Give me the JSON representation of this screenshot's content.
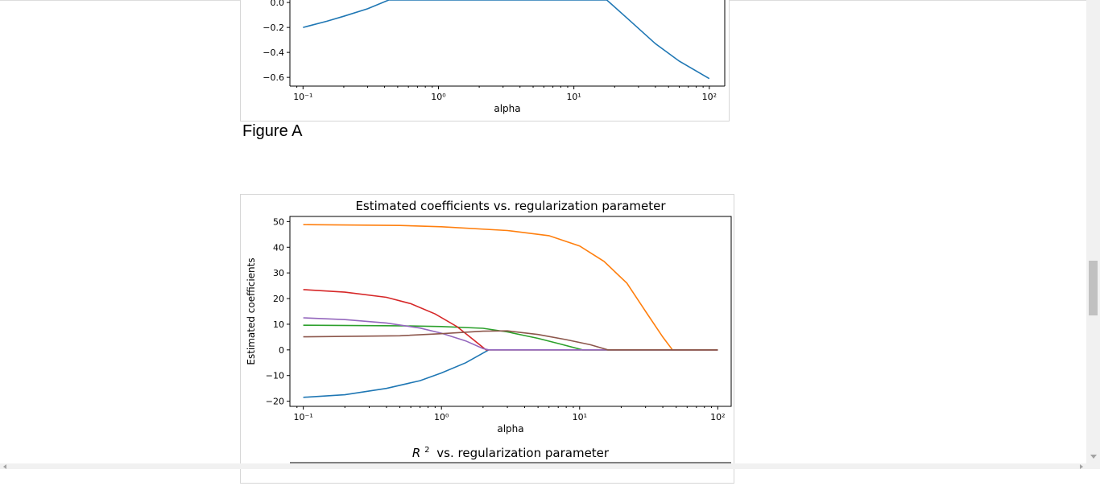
{
  "figure_a": {
    "caption": "Figure A",
    "chart_data": {
      "type": "line",
      "xlabel": "alpha",
      "xscale": "log",
      "xlim": [
        0.08,
        130
      ],
      "ylim": [
        -0.67,
        0.02
      ],
      "y_ticks": [
        0.0,
        -0.2,
        -0.4,
        -0.6
      ],
      "y_tick_labels": [
        "0.0",
        "−0.2",
        "−0.4",
        "−0.6"
      ],
      "x_ticks": [
        0.1,
        1,
        10,
        100
      ],
      "series": [
        {
          "color": "#1f77b4",
          "points": [
            [
              0.1,
              -0.2
            ],
            [
              0.15,
              -0.15
            ],
            [
              0.2,
              -0.11
            ],
            [
              0.3,
              -0.05
            ],
            [
              0.43,
              0.02
            ],
            [
              17.5,
              0.02
            ],
            [
              25,
              -0.13
            ],
            [
              40,
              -0.33
            ],
            [
              60,
              -0.47
            ],
            [
              100,
              -0.61
            ]
          ]
        }
      ]
    }
  },
  "figure_b": {
    "chart_data": {
      "type": "line",
      "title": "Estimated coefficients vs. regularization parameter",
      "xlabel": "alpha",
      "ylabel": "Estimated coefficients",
      "xscale": "log",
      "xlim": [
        0.08,
        125
      ],
      "ylim": [
        -22,
        52
      ],
      "y_ticks": [
        50,
        40,
        30,
        20,
        10,
        0,
        -10,
        -20
      ],
      "y_tick_labels": [
        "50",
        "40",
        "30",
        "20",
        "10",
        "0",
        "−10",
        "−20"
      ],
      "x_ticks": [
        0.1,
        1,
        10,
        100
      ],
      "series": [
        {
          "color": "#1f77b4",
          "points": [
            [
              0.1,
              -18.5
            ],
            [
              0.2,
              -17.5
            ],
            [
              0.4,
              -15
            ],
            [
              0.7,
              -12
            ],
            [
              1.0,
              -9
            ],
            [
              1.5,
              -5
            ],
            [
              2.2,
              0
            ],
            [
              100,
              0
            ]
          ]
        },
        {
          "color": "#ff7f0e",
          "points": [
            [
              0.1,
              48.8
            ],
            [
              0.5,
              48.5
            ],
            [
              1,
              48.0
            ],
            [
              3,
              46.5
            ],
            [
              6,
              44.5
            ],
            [
              10,
              40.5
            ],
            [
              15,
              34.5
            ],
            [
              22,
              26
            ],
            [
              30,
              15
            ],
            [
              40,
              5
            ],
            [
              47,
              0
            ],
            [
              100,
              0
            ]
          ]
        },
        {
          "color": "#2ca02c",
          "points": [
            [
              0.1,
              9.6
            ],
            [
              0.5,
              9.4
            ],
            [
              1,
              9.1
            ],
            [
              2,
              8.4
            ],
            [
              3,
              7
            ],
            [
              5,
              4.5
            ],
            [
              7,
              2.5
            ],
            [
              10.5,
              0
            ],
            [
              100,
              0
            ]
          ]
        },
        {
          "color": "#d62728",
          "points": [
            [
              0.1,
              23.5
            ],
            [
              0.2,
              22.5
            ],
            [
              0.4,
              20.5
            ],
            [
              0.6,
              18
            ],
            [
              0.9,
              14
            ],
            [
              1.3,
              9
            ],
            [
              1.7,
              4
            ],
            [
              2.1,
              0
            ],
            [
              100,
              0
            ]
          ]
        },
        {
          "color": "#9467bd",
          "points": [
            [
              0.1,
              12.5
            ],
            [
              0.2,
              11.8
            ],
            [
              0.4,
              10.5
            ],
            [
              0.7,
              8.5
            ],
            [
              1.0,
              6.5
            ],
            [
              1.5,
              3.5
            ],
            [
              2.0,
              0.5
            ],
            [
              2.2,
              0
            ],
            [
              100,
              0
            ]
          ]
        },
        {
          "color": "#8c564b",
          "points": [
            [
              0.1,
              5.1
            ],
            [
              0.5,
              5.5
            ],
            [
              1,
              6.3
            ],
            [
              2,
              7.3
            ],
            [
              3,
              7.4
            ],
            [
              5,
              6
            ],
            [
              8,
              4
            ],
            [
              12,
              2
            ],
            [
              16,
              0
            ],
            [
              100,
              0
            ]
          ]
        }
      ]
    }
  },
  "figure_c": {
    "title_label": "vs. regularization parameter",
    "title_symbol": "R",
    "title_superscript": "2"
  }
}
